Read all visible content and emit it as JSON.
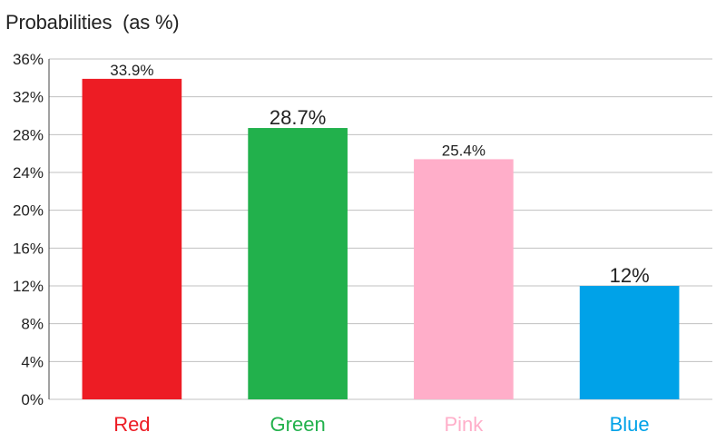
{
  "chart_data": {
    "type": "bar",
    "title": "Probabilities  (as %)",
    "xlabel": "",
    "ylabel": "",
    "categories": [
      "Red",
      "Green",
      "Pink",
      "Blue"
    ],
    "values": [
      33.9,
      28.7,
      25.4,
      12
    ],
    "value_labels": [
      "33.9%",
      "28.7%",
      "25.4%",
      "12%"
    ],
    "colors": [
      "#ed1c24",
      "#22b14c",
      "#ffaec9",
      "#00a2e8"
    ],
    "ylim": [
      0,
      36
    ],
    "yticks": [
      0,
      4,
      8,
      12,
      16,
      20,
      24,
      28,
      32,
      36
    ],
    "ytick_labels": [
      "0%",
      "4%",
      "8%",
      "12%",
      "16%",
      "20%",
      "24%",
      "28%",
      "32%",
      "36%"
    ],
    "grid": true,
    "legend": "none"
  }
}
